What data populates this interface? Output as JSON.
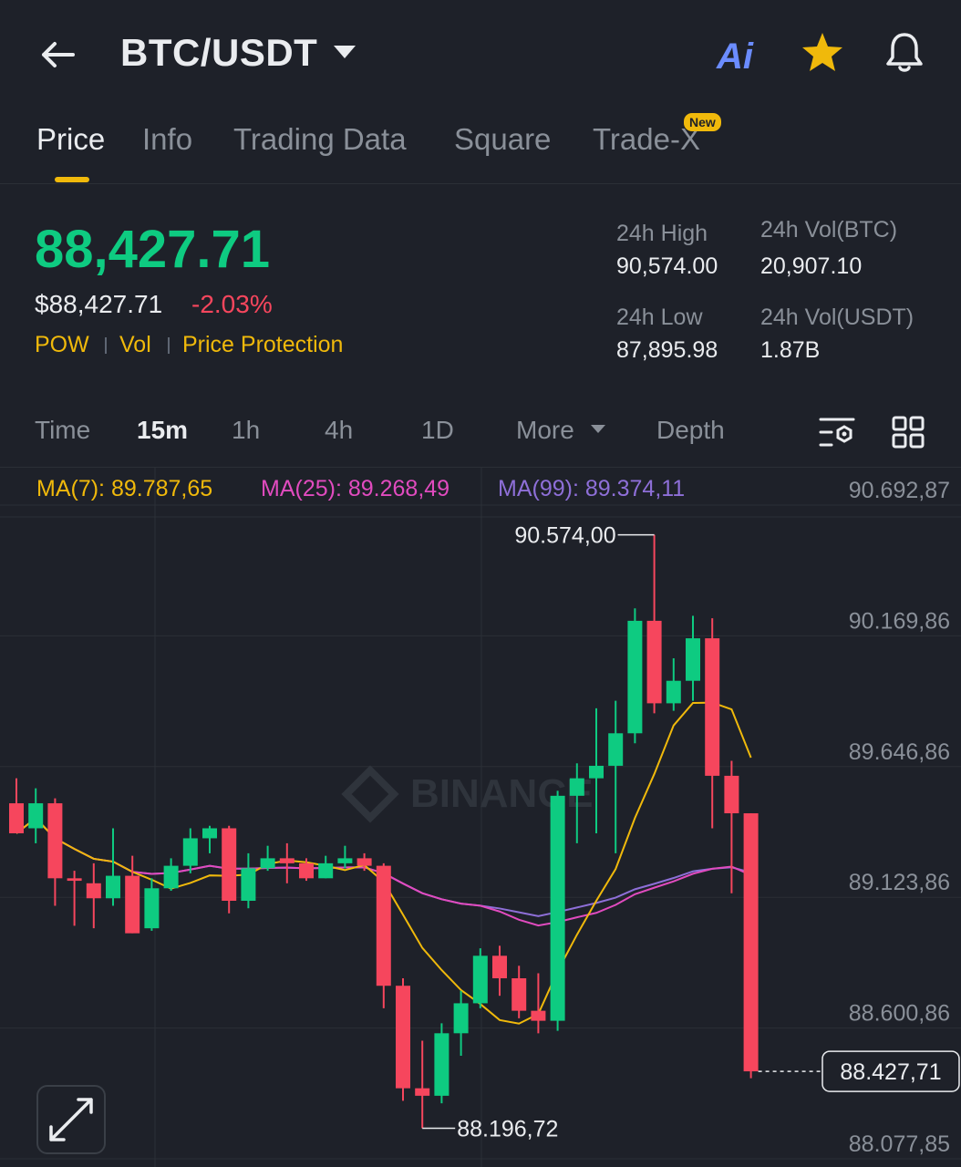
{
  "header": {
    "back_icon": "arrow-left-icon",
    "pair": "BTC/USDT",
    "ai_label": "Ai",
    "favorite_icon": "star-icon",
    "alert_icon": "bell-icon"
  },
  "tabs": [
    {
      "label": "Price",
      "active": true
    },
    {
      "label": "Info"
    },
    {
      "label": "Trading Data"
    },
    {
      "label": "Square"
    },
    {
      "label": "Trade-X",
      "badge": "New"
    }
  ],
  "price": {
    "last": "88,427.71",
    "usd": "$88,427.71",
    "change": "-2.03%",
    "tags": [
      "POW",
      "Vol",
      "Price Protection"
    ]
  },
  "stats": {
    "high_label": "24h High",
    "high": "90,574.00",
    "vol_btc_label": "24h Vol(BTC)",
    "vol_btc": "20,907.10",
    "low_label": "24h Low",
    "low": "87,895.98",
    "vol_usdt_label": "24h Vol(USDT)",
    "vol_usdt": "1.87B"
  },
  "intervals": {
    "items": [
      "Time",
      "15m",
      "1h",
      "4h",
      "1D",
      "More",
      "Depth"
    ],
    "active": "15m"
  },
  "ma": {
    "ma7": "MA(7): 89.787,65",
    "ma25": "MA(25): 89.268,49",
    "ma99": "MA(99): 89.374,11"
  },
  "colors": {
    "up": "#0ecb81",
    "down": "#f6465d",
    "ma7": "#f0b90b",
    "ma25": "#e14bbf",
    "ma99": "#8e6fd8",
    "accent": "#f0b90b"
  },
  "chart_data": {
    "type": "candlestick",
    "watermark": "BINANCE",
    "y_ticks": [
      "90.692,87",
      "90.169,86",
      "89.646,86",
      "89.123,86",
      "88.600,86",
      "88.077,85"
    ],
    "y_tick_values": [
      90692.87,
      90169.86,
      89646.86,
      89123.86,
      88600.86,
      88077.85
    ],
    "ylim": [
      88077.85,
      90692.87
    ],
    "high_marker": "90.574,00",
    "low_marker": "88.196,72",
    "last_price_label": "88.427,71",
    "candles": [
      {
        "o": 89500,
        "h": 89600,
        "l": 89380,
        "c": 89380
      },
      {
        "o": 89400,
        "h": 89560,
        "l": 89340,
        "c": 89500
      },
      {
        "o": 89500,
        "h": 89520,
        "l": 89090,
        "c": 89200
      },
      {
        "o": 89200,
        "h": 89230,
        "l": 89010,
        "c": 89190
      },
      {
        "o": 89180,
        "h": 89260,
        "l": 89000,
        "c": 89120
      },
      {
        "o": 89120,
        "h": 89400,
        "l": 89090,
        "c": 89210
      },
      {
        "o": 89210,
        "h": 89290,
        "l": 88980,
        "c": 88980
      },
      {
        "o": 89000,
        "h": 89200,
        "l": 88990,
        "c": 89160
      },
      {
        "o": 89160,
        "h": 89280,
        "l": 89150,
        "c": 89250
      },
      {
        "o": 89250,
        "h": 89400,
        "l": 89220,
        "c": 89360
      },
      {
        "o": 89360,
        "h": 89410,
        "l": 89300,
        "c": 89400
      },
      {
        "o": 89400,
        "h": 89410,
        "l": 89060,
        "c": 89110
      },
      {
        "o": 89110,
        "h": 89300,
        "l": 89080,
        "c": 89240
      },
      {
        "o": 89240,
        "h": 89330,
        "l": 89230,
        "c": 89280
      },
      {
        "o": 89280,
        "h": 89340,
        "l": 89180,
        "c": 89260
      },
      {
        "o": 89260,
        "h": 89280,
        "l": 89190,
        "c": 89200
      },
      {
        "o": 89200,
        "h": 89290,
        "l": 89200,
        "c": 89260
      },
      {
        "o": 89260,
        "h": 89330,
        "l": 89240,
        "c": 89280
      },
      {
        "o": 89280,
        "h": 89300,
        "l": 89230,
        "c": 89250
      },
      {
        "o": 89250,
        "h": 89260,
        "l": 88680,
        "c": 88770
      },
      {
        "o": 88770,
        "h": 88800,
        "l": 88310,
        "c": 88360
      },
      {
        "o": 88360,
        "h": 88550,
        "l": 88200,
        "c": 88330
      },
      {
        "o": 88330,
        "h": 88620,
        "l": 88300,
        "c": 88580
      },
      {
        "o": 88580,
        "h": 88750,
        "l": 88490,
        "c": 88700
      },
      {
        "o": 88700,
        "h": 88920,
        "l": 88680,
        "c": 88890
      },
      {
        "o": 88890,
        "h": 88930,
        "l": 88730,
        "c": 88800
      },
      {
        "o": 88800,
        "h": 88850,
        "l": 88640,
        "c": 88670
      },
      {
        "o": 88670,
        "h": 88820,
        "l": 88580,
        "c": 88630
      },
      {
        "o": 88630,
        "h": 89550,
        "l": 88590,
        "c": 89530
      },
      {
        "o": 89530,
        "h": 89660,
        "l": 89340,
        "c": 89600
      },
      {
        "o": 89600,
        "h": 89880,
        "l": 89380,
        "c": 89650
      },
      {
        "o": 89650,
        "h": 89910,
        "l": 89300,
        "c": 89780
      },
      {
        "o": 89780,
        "h": 90280,
        "l": 89740,
        "c": 90230
      },
      {
        "o": 90230,
        "h": 90574,
        "l": 89860,
        "c": 89900
      },
      {
        "o": 89900,
        "h": 90080,
        "l": 89870,
        "c": 89990
      },
      {
        "o": 89990,
        "h": 90250,
        "l": 89910,
        "c": 90160
      },
      {
        "o": 90160,
        "h": 90240,
        "l": 89400,
        "c": 89610
      },
      {
        "o": 89610,
        "h": 89670,
        "l": 89140,
        "c": 89460
      },
      {
        "o": 89460,
        "h": 89460,
        "l": 88400,
        "c": 88427.71
      }
    ]
  }
}
